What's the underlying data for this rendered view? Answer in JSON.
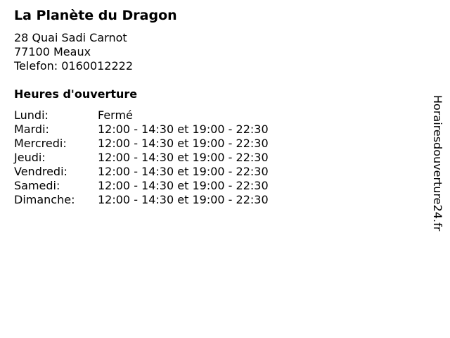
{
  "business": {
    "name": "La Planète du Dragon",
    "street": "28 Quai Sadi Carnot",
    "city": "77100 Meaux",
    "phone": "Telefon: 0160012222"
  },
  "hours": {
    "heading": "Heures d'ouverture",
    "rows": [
      {
        "day": "Lundi:",
        "time": "Fermé"
      },
      {
        "day": "Mardi:",
        "time": "12:00 - 14:30 et 19:00 - 22:30"
      },
      {
        "day": "Mercredi:",
        "time": "12:00 - 14:30 et 19:00 - 22:30"
      },
      {
        "day": "Jeudi:",
        "time": "12:00 - 14:30 et 19:00 - 22:30"
      },
      {
        "day": "Vendredi:",
        "time": "12:00 - 14:30 et 19:00 - 22:30"
      },
      {
        "day": "Samedi:",
        "time": "12:00 - 14:30 et 19:00 - 22:30"
      },
      {
        "day": "Dimanche:",
        "time": "12:00 - 14:30 et 19:00 - 22:30"
      }
    ]
  },
  "watermark": "Horairesdouverture24.fr"
}
